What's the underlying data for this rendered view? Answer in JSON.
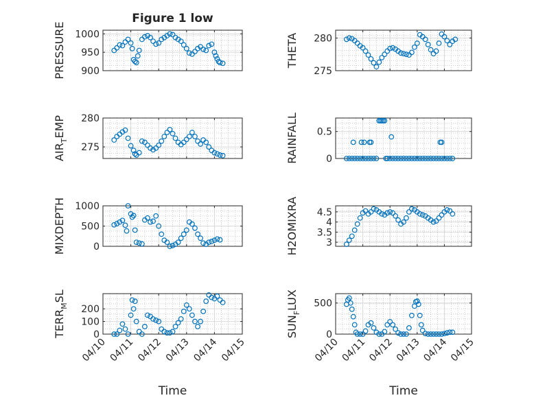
{
  "figure": {
    "title": "Figure 1 low",
    "xlabel_common": "Time"
  },
  "chart_data": [
    {
      "type": "scatter",
      "title": "Figure 1 low",
      "ylabel": "PRESSURE",
      "xlabel": "",
      "xlim": [
        0,
        5
      ],
      "ylim": [
        900,
        1010
      ],
      "yticks": [
        900,
        950,
        1000
      ],
      "ytick_labels": [
        "900",
        "950",
        "1000"
      ],
      "xticks": [
        0,
        1,
        2,
        3,
        4,
        5
      ],
      "xtick_labels": [],
      "show_xticklabels": false,
      "grid": true,
      "marker": "circle",
      "color": "#0072BD",
      "x": [
        0.4,
        0.5,
        0.6,
        0.7,
        0.8,
        0.9,
        1.0,
        1.05,
        1.1,
        1.15,
        1.2,
        1.25,
        1.3,
        1.4,
        1.5,
        1.6,
        1.7,
        1.8,
        1.9,
        2.0,
        2.1,
        2.2,
        2.3,
        2.4,
        2.5,
        2.6,
        2.7,
        2.8,
        2.9,
        3.0,
        3.1,
        3.2,
        3.3,
        3.4,
        3.5,
        3.6,
        3.7,
        3.8,
        3.9,
        4.0,
        4.05,
        4.1,
        4.15,
        4.2,
        4.3
      ],
      "y": [
        955,
        962,
        970,
        968,
        978,
        985,
        975,
        960,
        930,
        925,
        922,
        940,
        955,
        985,
        992,
        995,
        990,
        980,
        972,
        975,
        985,
        990,
        995,
        1000,
        998,
        990,
        985,
        980,
        970,
        960,
        948,
        945,
        952,
        960,
        965,
        958,
        955,
        968,
        972,
        950,
        940,
        932,
        925,
        922,
        920
      ]
    },
    {
      "type": "scatter",
      "ylabel": "THETA",
      "xlabel": "",
      "xlim": [
        0,
        5
      ],
      "ylim": [
        275,
        281.2
      ],
      "yticks": [
        275,
        280
      ],
      "ytick_labels": [
        "275",
        "280"
      ],
      "xticks": [
        0,
        1,
        2,
        3,
        4,
        5
      ],
      "xtick_labels": [],
      "show_xticklabels": false,
      "grid": true,
      "marker": "circle",
      "color": "#0072BD",
      "x": [
        0.4,
        0.5,
        0.6,
        0.7,
        0.8,
        0.9,
        1.0,
        1.1,
        1.2,
        1.3,
        1.4,
        1.5,
        1.6,
        1.7,
        1.8,
        1.9,
        2.0,
        2.1,
        2.2,
        2.3,
        2.4,
        2.5,
        2.6,
        2.7,
        2.8,
        2.9,
        3.0,
        3.1,
        3.2,
        3.3,
        3.4,
        3.5,
        3.6,
        3.7,
        3.8,
        3.9,
        4.0,
        4.1,
        4.2,
        4.3,
        4.4
      ],
      "y": [
        279.8,
        280.0,
        279.9,
        279.6,
        279.2,
        278.8,
        278.5,
        278.0,
        277.4,
        276.8,
        276.2,
        275.6,
        276.3,
        277.0,
        277.5,
        278.0,
        278.4,
        278.5,
        278.3,
        278.0,
        277.7,
        277.6,
        277.5,
        277.4,
        277.8,
        278.6,
        279.2,
        280.5,
        280.2,
        279.8,
        279.0,
        278.2,
        277.6,
        278.0,
        279.2,
        280.6,
        280.2,
        279.6,
        279.0,
        279.5,
        279.8
      ]
    },
    {
      "type": "scatter",
      "ylabel": "AIR_TEMP",
      "xlabel": "",
      "xlim": [
        0,
        5
      ],
      "ylim": [
        273,
        280
      ],
      "yticks": [
        275,
        280
      ],
      "ytick_labels": [
        "275",
        "280"
      ],
      "xticks": [
        0,
        1,
        2,
        3,
        4,
        5
      ],
      "xtick_labels": [],
      "show_xticklabels": false,
      "grid": true,
      "marker": "circle",
      "color": "#0072BD",
      "x": [
        0.4,
        0.5,
        0.6,
        0.7,
        0.8,
        0.9,
        1.0,
        1.1,
        1.15,
        1.2,
        1.3,
        1.4,
        1.5,
        1.6,
        1.7,
        1.8,
        1.9,
        2.0,
        2.1,
        2.2,
        2.3,
        2.4,
        2.5,
        2.6,
        2.7,
        2.8,
        2.9,
        3.0,
        3.1,
        3.2,
        3.3,
        3.4,
        3.5,
        3.6,
        3.7,
        3.8,
        3.9,
        4.0,
        4.1,
        4.2,
        4.3
      ],
      "y": [
        276.2,
        276.8,
        277.2,
        277.6,
        277.9,
        276.5,
        275.2,
        274.4,
        273.8,
        273.6,
        274.0,
        276.0,
        275.8,
        275.3,
        274.8,
        274.5,
        274.8,
        275.3,
        276.0,
        276.8,
        277.5,
        278.0,
        277.3,
        276.5,
        275.8,
        275.4,
        275.8,
        276.3,
        276.8,
        277.5,
        276.8,
        276.0,
        275.5,
        276.2,
        275.8,
        275.0,
        274.4,
        274.0,
        273.8,
        273.6,
        273.5
      ]
    },
    {
      "type": "scatter",
      "ylabel": "RAINFALL",
      "xlabel": "",
      "xlim": [
        0,
        5
      ],
      "ylim": [
        0,
        0.75
      ],
      "yticks": [
        0,
        0.5
      ],
      "ytick_labels": [
        "0",
        "0.5"
      ],
      "xticks": [
        0,
        1,
        2,
        3,
        4,
        5
      ],
      "xtick_labels": [],
      "show_xticklabels": false,
      "grid": true,
      "marker": "circle",
      "color": "#0072BD",
      "x": [
        0.4,
        0.5,
        0.6,
        0.7,
        0.8,
        0.9,
        1.0,
        1.1,
        1.2,
        1.3,
        1.4,
        1.5,
        1.6,
        1.65,
        1.7,
        1.75,
        1.8,
        1.85,
        1.9,
        2.0,
        2.1,
        2.2,
        2.3,
        2.4,
        2.5,
        2.6,
        2.7,
        2.8,
        2.9,
        3.0,
        3.1,
        3.2,
        3.3,
        3.4,
        3.5,
        3.6,
        3.7,
        3.8,
        3.9,
        4.0,
        4.1,
        4.2,
        4.3,
        0.65,
        0.95,
        1.05,
        1.25,
        1.3,
        2.05,
        3.85,
        3.9
      ],
      "y": [
        0,
        0,
        0,
        0,
        0,
        0,
        0,
        0,
        0,
        0,
        0,
        0,
        0.7,
        0.7,
        0.7,
        0.7,
        0.7,
        0,
        0,
        0,
        0,
        0,
        0,
        0,
        0,
        0,
        0,
        0,
        0,
        0,
        0,
        0,
        0,
        0,
        0,
        0,
        0,
        0,
        0,
        0,
        0,
        0,
        0,
        0.3,
        0.3,
        0.3,
        0.3,
        0.3,
        0.4,
        0.3,
        0.3
      ]
    },
    {
      "type": "scatter",
      "ylabel": "MIXDEPTH",
      "xlabel": "",
      "xlim": [
        0,
        5
      ],
      "ylim": [
        0,
        1000
      ],
      "yticks": [
        0,
        500,
        1000
      ],
      "ytick_labels": [
        "0",
        "500",
        "1000"
      ],
      "xticks": [
        0,
        1,
        2,
        3,
        4,
        5
      ],
      "xtick_labels": [],
      "show_xticklabels": false,
      "grid": true,
      "marker": "circle",
      "color": "#0072BD",
      "x": [
        0.4,
        0.5,
        0.6,
        0.7,
        0.8,
        0.85,
        0.9,
        1.0,
        1.05,
        1.1,
        1.15,
        1.2,
        1.3,
        1.4,
        1.5,
        1.6,
        1.7,
        1.8,
        1.9,
        2.0,
        2.1,
        2.2,
        2.3,
        2.4,
        2.5,
        2.6,
        2.7,
        2.8,
        2.9,
        3.0,
        3.1,
        3.2,
        3.3,
        3.4,
        3.5,
        3.6,
        3.7,
        3.8,
        3.9,
        4.0,
        4.1,
        4.2
      ],
      "y": [
        530,
        560,
        600,
        640,
        520,
        380,
        1000,
        800,
        720,
        760,
        400,
        100,
        80,
        60,
        650,
        700,
        600,
        620,
        750,
        500,
        300,
        150,
        100,
        0,
        20,
        50,
        100,
        200,
        300,
        400,
        600,
        550,
        450,
        300,
        200,
        80,
        50,
        100,
        120,
        150,
        180,
        160
      ]
    },
    {
      "type": "scatter",
      "ylabel": "H2OMIXRA",
      "xlabel": "",
      "xlim": [
        0,
        5
      ],
      "ylim": [
        2.8,
        4.8
      ],
      "yticks": [
        3,
        3.5,
        4,
        4.5
      ],
      "ytick_labels": [
        "3",
        "3.5",
        "4",
        "4.5"
      ],
      "xticks": [
        0,
        1,
        2,
        3,
        4,
        5
      ],
      "xtick_labels": [],
      "show_xticklabels": false,
      "grid": true,
      "marker": "circle",
      "color": "#0072BD",
      "x": [
        0.4,
        0.5,
        0.6,
        0.7,
        0.8,
        0.9,
        1.0,
        1.1,
        1.2,
        1.3,
        1.4,
        1.5,
        1.6,
        1.7,
        1.8,
        1.9,
        2.0,
        2.1,
        2.2,
        2.3,
        2.4,
        2.5,
        2.6,
        2.7,
        2.8,
        2.9,
        3.0,
        3.1,
        3.2,
        3.3,
        3.4,
        3.5,
        3.6,
        3.7,
        3.8,
        3.9,
        4.0,
        4.1,
        4.2,
        4.3
      ],
      "y": [
        2.9,
        3.1,
        3.3,
        3.6,
        3.9,
        4.2,
        4.45,
        4.55,
        4.4,
        4.5,
        4.65,
        4.6,
        4.5,
        4.4,
        4.35,
        4.45,
        4.5,
        4.45,
        4.3,
        4.1,
        3.9,
        4.0,
        4.2,
        4.5,
        4.65,
        4.6,
        4.5,
        4.4,
        4.35,
        4.3,
        4.2,
        4.1,
        4.0,
        4.05,
        4.2,
        4.35,
        4.5,
        4.6,
        4.55,
        4.4
      ]
    },
    {
      "type": "scatter",
      "ylabel": "TERR_MSL",
      "xlabel": "Time",
      "xlim": [
        0,
        5
      ],
      "ylim": [
        0,
        320
      ],
      "yticks": [
        0,
        100,
        200
      ],
      "ytick_labels": [
        "0",
        "100",
        "200"
      ],
      "xticks": [
        0,
        1,
        2,
        3,
        4,
        5
      ],
      "xtick_labels": [
        "04/10",
        "04/11",
        "04/12",
        "04/13",
        "04/14",
        "04/15"
      ],
      "show_xticklabels": true,
      "grid": true,
      "marker": "circle",
      "color": "#0072BD",
      "x": [
        0.4,
        0.5,
        0.6,
        0.7,
        0.8,
        0.9,
        1.0,
        1.05,
        1.1,
        1.15,
        1.2,
        1.3,
        1.4,
        1.5,
        1.6,
        1.7,
        1.8,
        1.9,
        2.0,
        2.1,
        2.2,
        2.3,
        2.4,
        2.5,
        2.6,
        2.7,
        2.8,
        2.9,
        3.0,
        3.1,
        3.2,
        3.3,
        3.4,
        3.5,
        3.6,
        3.7,
        3.8,
        3.9,
        4.0,
        4.1,
        4.2,
        4.3
      ],
      "y": [
        0,
        0,
        30,
        80,
        40,
        0,
        150,
        270,
        200,
        260,
        100,
        20,
        0,
        60,
        150,
        140,
        120,
        110,
        100,
        40,
        20,
        10,
        10,
        20,
        60,
        90,
        120,
        180,
        230,
        200,
        150,
        100,
        60,
        100,
        180,
        260,
        310,
        290,
        280,
        300,
        270,
        250
      ]
    },
    {
      "type": "scatter",
      "ylabel": "SUN_FLUX",
      "xlabel": "Time",
      "xlim": [
        0,
        5
      ],
      "ylim": [
        0,
        650
      ],
      "yticks": [
        0,
        500
      ],
      "ytick_labels": [
        "0",
        "500"
      ],
      "xticks": [
        0,
        1,
        2,
        3,
        4,
        5
      ],
      "xtick_labels": [
        "04/10",
        "04/11",
        "04/12",
        "04/13",
        "04/14",
        "04/15"
      ],
      "show_xticklabels": true,
      "grid": true,
      "marker": "circle",
      "color": "#0072BD",
      "x": [
        0.4,
        0.45,
        0.5,
        0.55,
        0.6,
        0.65,
        0.7,
        0.75,
        0.8,
        0.9,
        1.0,
        1.1,
        1.2,
        1.3,
        1.4,
        1.5,
        1.6,
        1.7,
        1.8,
        1.9,
        2.0,
        2.1,
        2.2,
        2.3,
        2.4,
        2.5,
        2.6,
        2.7,
        2.8,
        2.9,
        2.95,
        3.0,
        3.05,
        3.1,
        3.15,
        3.2,
        3.3,
        3.4,
        3.5,
        3.6,
        3.7,
        3.8,
        3.9,
        4.0,
        4.1,
        4.2,
        4.3
      ],
      "y": [
        480,
        550,
        580,
        500,
        400,
        280,
        150,
        30,
        0,
        0,
        0,
        50,
        150,
        180,
        100,
        30,
        0,
        0,
        40,
        150,
        200,
        150,
        80,
        20,
        0,
        0,
        0,
        100,
        300,
        450,
        520,
        530,
        480,
        300,
        150,
        60,
        10,
        0,
        0,
        0,
        0,
        0,
        0,
        10,
        20,
        30,
        30
      ]
    }
  ]
}
